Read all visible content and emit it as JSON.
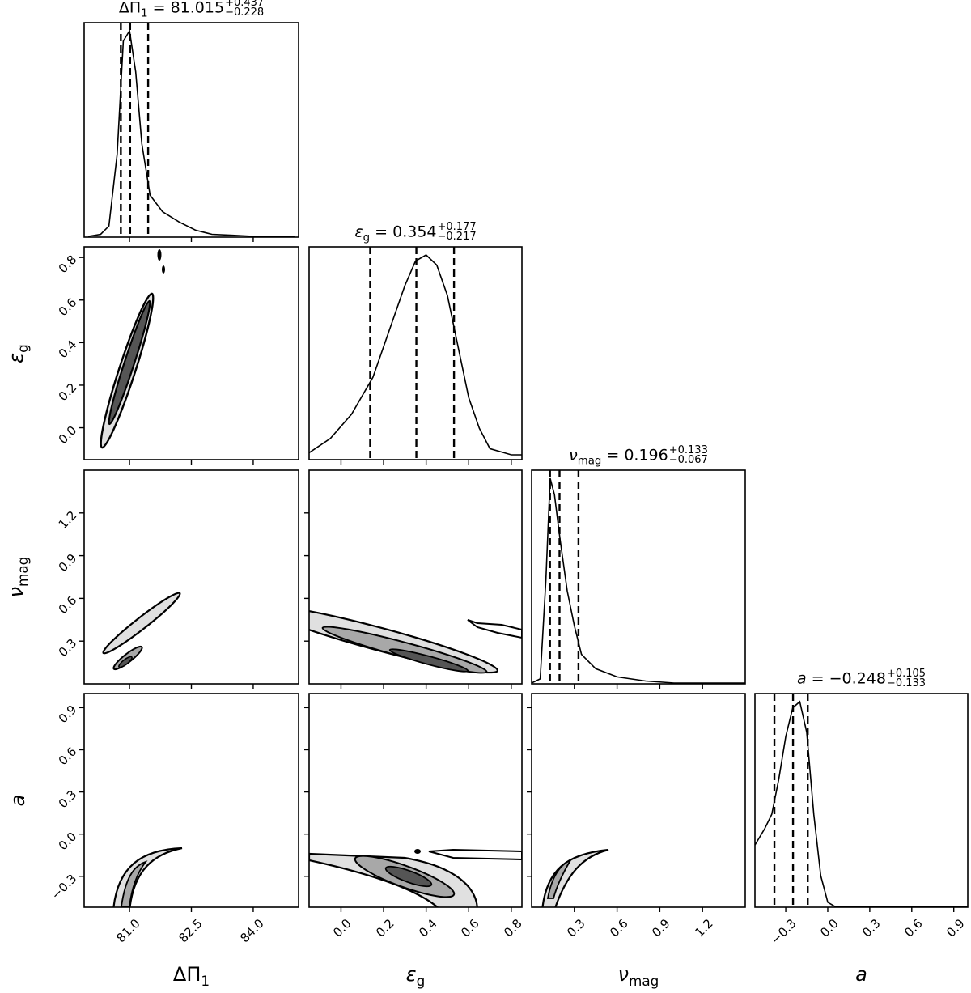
{
  "chart_data": {
    "type": "corner",
    "parameters": [
      "ΔΠ1",
      "εg",
      "νmag",
      "a"
    ],
    "axis_labels": {
      "dpi": "ΔΠ",
      "dpi_sub": "1",
      "eps": "ε",
      "eps_sub": "g",
      "nu": "ν",
      "nu_sub": "mag",
      "a": "a"
    },
    "titles": [
      {
        "param": "ΔΠ1",
        "median": "81.015",
        "plus": "+0.437",
        "minus": "−0.228"
      },
      {
        "param": "εg",
        "median": "0.354",
        "plus": "+0.177",
        "minus": "−0.217"
      },
      {
        "param": "νmag",
        "median": "0.196",
        "plus": "+0.133",
        "minus": "−0.067"
      },
      {
        "param": "a",
        "median": "−0.248",
        "plus": "+0.105",
        "minus": "−0.133"
      }
    ],
    "ranges": {
      "dpi": [
        79.9,
        85.1
      ],
      "eps": [
        -0.15,
        0.85
      ],
      "nu": [
        0.0,
        1.5
      ],
      "a": [
        -0.52,
        1.0
      ]
    },
    "ticks": {
      "dpi": [
        "81.0",
        "82.5",
        "84.0"
      ],
      "eps": [
        "0.0",
        "0.2",
        "0.4",
        "0.6",
        "0.8"
      ],
      "nu": [
        "0.3",
        "0.6",
        "0.9",
        "1.2"
      ],
      "a": [
        "−0.3",
        "0.0",
        "0.3",
        "0.6",
        "0.9"
      ]
    },
    "quantile_lines": {
      "dpi": [
        80.79,
        81.015,
        81.452
      ],
      "eps": [
        0.137,
        0.354,
        0.531
      ],
      "nu": [
        0.129,
        0.196,
        0.329
      ],
      "a": [
        -0.381,
        -0.248,
        -0.143
      ]
    },
    "histograms": {
      "dpi": {
        "x": [
          80.0,
          80.3,
          80.5,
          80.7,
          80.85,
          81.0,
          81.15,
          81.3,
          81.5,
          81.8,
          82.2,
          82.6,
          83.0,
          83.5,
          84.0,
          85.0
        ],
        "y": [
          0,
          0.01,
          0.05,
          0.4,
          0.95,
          1.0,
          0.8,
          0.45,
          0.2,
          0.12,
          0.07,
          0.03,
          0.01,
          0.005,
          0,
          0
        ]
      },
      "eps": {
        "x": [
          -0.15,
          -0.05,
          0.05,
          0.15,
          0.25,
          0.3,
          0.35,
          0.4,
          0.45,
          0.5,
          0.55,
          0.6,
          0.65,
          0.7,
          0.8,
          0.85
        ],
        "y": [
          0.03,
          0.1,
          0.22,
          0.4,
          0.7,
          0.85,
          0.97,
          1.0,
          0.95,
          0.8,
          0.55,
          0.3,
          0.15,
          0.05,
          0.02,
          0.02
        ]
      },
      "nu": {
        "x": [
          0.0,
          0.06,
          0.1,
          0.13,
          0.16,
          0.2,
          0.25,
          0.3,
          0.35,
          0.45,
          0.6,
          0.8,
          1.0,
          1.5
        ],
        "y": [
          0,
          0.02,
          0.5,
          1.0,
          0.92,
          0.7,
          0.45,
          0.28,
          0.14,
          0.07,
          0.03,
          0.01,
          0,
          0
        ]
      },
      "a": {
        "x": [
          -0.52,
          -0.45,
          -0.4,
          -0.35,
          -0.3,
          -0.25,
          -0.2,
          -0.15,
          -0.1,
          -0.05,
          0.0,
          0.05,
          1.0
        ],
        "y": [
          0.3,
          0.38,
          0.45,
          0.62,
          0.83,
          0.97,
          1.0,
          0.85,
          0.45,
          0.15,
          0.02,
          0,
          0
        ]
      }
    }
  },
  "figure": {
    "line_color": "#000000",
    "fill_light": "#e0e0e0",
    "fill_mid": "#a8a8a8",
    "fill_dark": "#555555",
    "background": "#ffffff"
  }
}
